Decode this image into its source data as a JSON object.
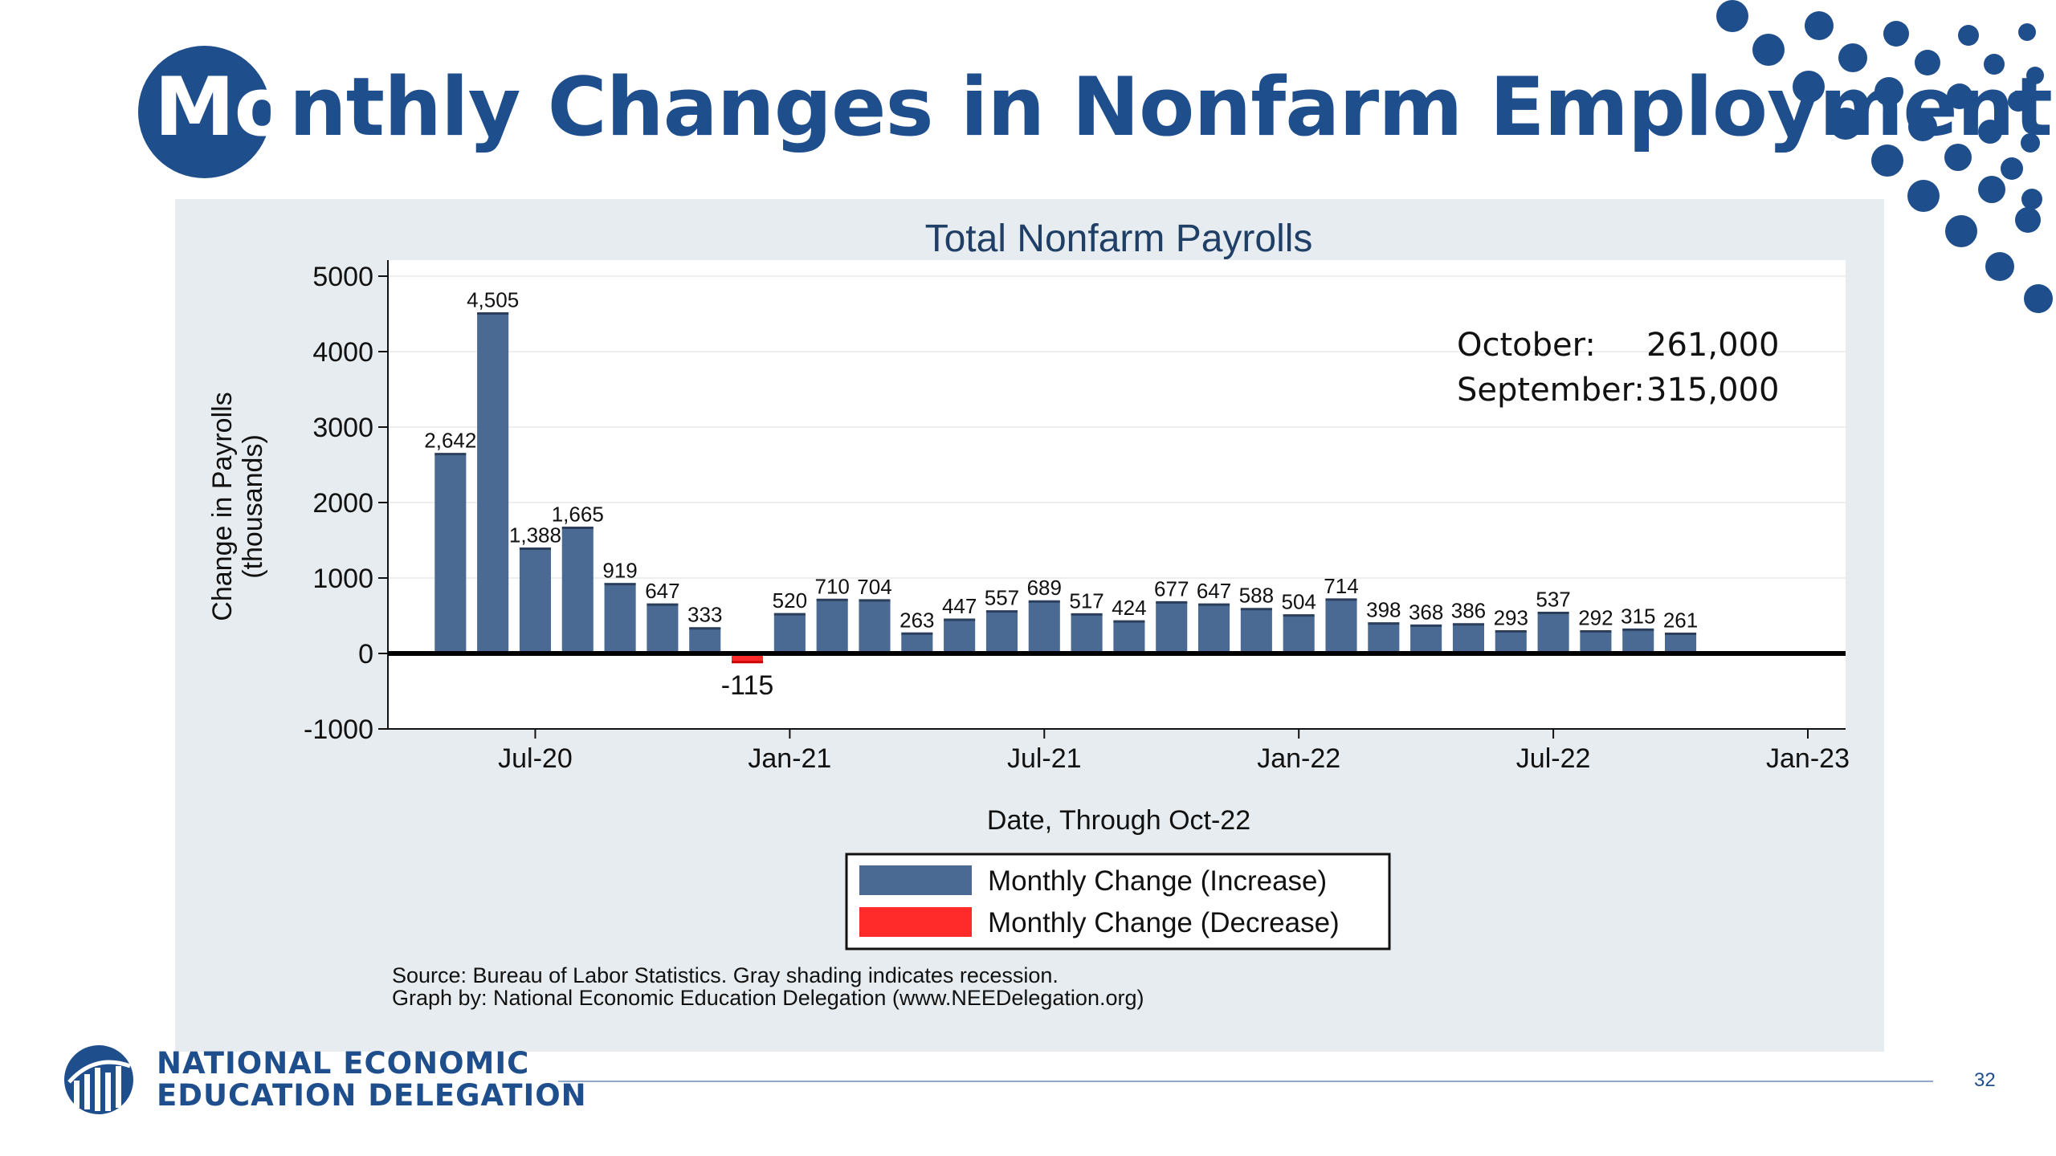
{
  "slide": {
    "title_first": "Mo",
    "title_rest": "nthly Changes in Nonfarm Employment",
    "page_number": "32"
  },
  "footer": {
    "org_line1": "NATIONAL ECONOMIC",
    "org_line2": "EDUCATION DELEGATION"
  },
  "colors": {
    "brand_blue": "#1f4e8c",
    "increase": "#4a6a93",
    "decrease": "#ff2a2a",
    "panel": "#e6ecef"
  },
  "chart_data": {
    "type": "bar",
    "title": "Total Nonfarm Payrolls",
    "xlabel": "Date, Through Oct-22",
    "ylabel_line1": "Change in Payrolls",
    "ylabel_line2": "(thousands)",
    "ylim": [
      -1000,
      5000
    ],
    "yticks": [
      -1000,
      0,
      1000,
      2000,
      3000,
      4000,
      5000
    ],
    "yticks_labels": [
      "-1000",
      "0",
      "1000",
      "2000",
      "3000",
      "4000",
      "5000"
    ],
    "xticks": [
      {
        "label": "Jul-20",
        "at": "2020-07"
      },
      {
        "label": "Jan-21",
        "at": "2021-01"
      },
      {
        "label": "Jul-21",
        "at": "2021-07"
      },
      {
        "label": "Jan-22",
        "at": "2022-01"
      },
      {
        "label": "Jul-22",
        "at": "2022-07"
      },
      {
        "label": "Jan-23",
        "at": "2023-01"
      }
    ],
    "xlim": [
      "2020-04",
      "2023-01"
    ],
    "categories": [
      "2020-05",
      "2020-06",
      "2020-07",
      "2020-08",
      "2020-09",
      "2020-10",
      "2020-11",
      "2020-12",
      "2021-01",
      "2021-02",
      "2021-03",
      "2021-04",
      "2021-05",
      "2021-06",
      "2021-07",
      "2021-08",
      "2021-09",
      "2021-10",
      "2021-11",
      "2021-12",
      "2022-01",
      "2022-02",
      "2022-03",
      "2022-04",
      "2022-05",
      "2022-06",
      "2022-07",
      "2022-08",
      "2022-09",
      "2022-10"
    ],
    "values": [
      2642,
      4505,
      1388,
      1665,
      919,
      647,
      333,
      -115,
      520,
      710,
      704,
      263,
      447,
      557,
      689,
      517,
      424,
      677,
      647,
      588,
      504,
      714,
      398,
      368,
      386,
      293,
      537,
      292,
      315,
      261
    ],
    "value_labels": [
      "2,642",
      "4,505",
      "1,388",
      "1,665",
      "919",
      "647",
      "333",
      "-115",
      "520",
      "710",
      "704",
      "263",
      "447",
      "557",
      "689",
      "517",
      "424",
      "677",
      "647",
      "588",
      "504",
      "714",
      "398",
      "368",
      "386",
      "293",
      "537",
      "292",
      "315",
      "261"
    ],
    "annotation": {
      "line1_label": "October:",
      "line1_value": "261,000",
      "line2_label": "September:",
      "line2_value": "315,000"
    },
    "legend": {
      "placement": "bottom",
      "items": [
        "Monthly Change (Increase)",
        "Monthly Change (Decrease)"
      ]
    },
    "source_line1": "Source: Bureau of Labor Statistics. Gray shading indicates recession.",
    "source_line2": "Graph by: National Economic Education Delegation (www.NEEDelegation.org)",
    "grid": true
  }
}
